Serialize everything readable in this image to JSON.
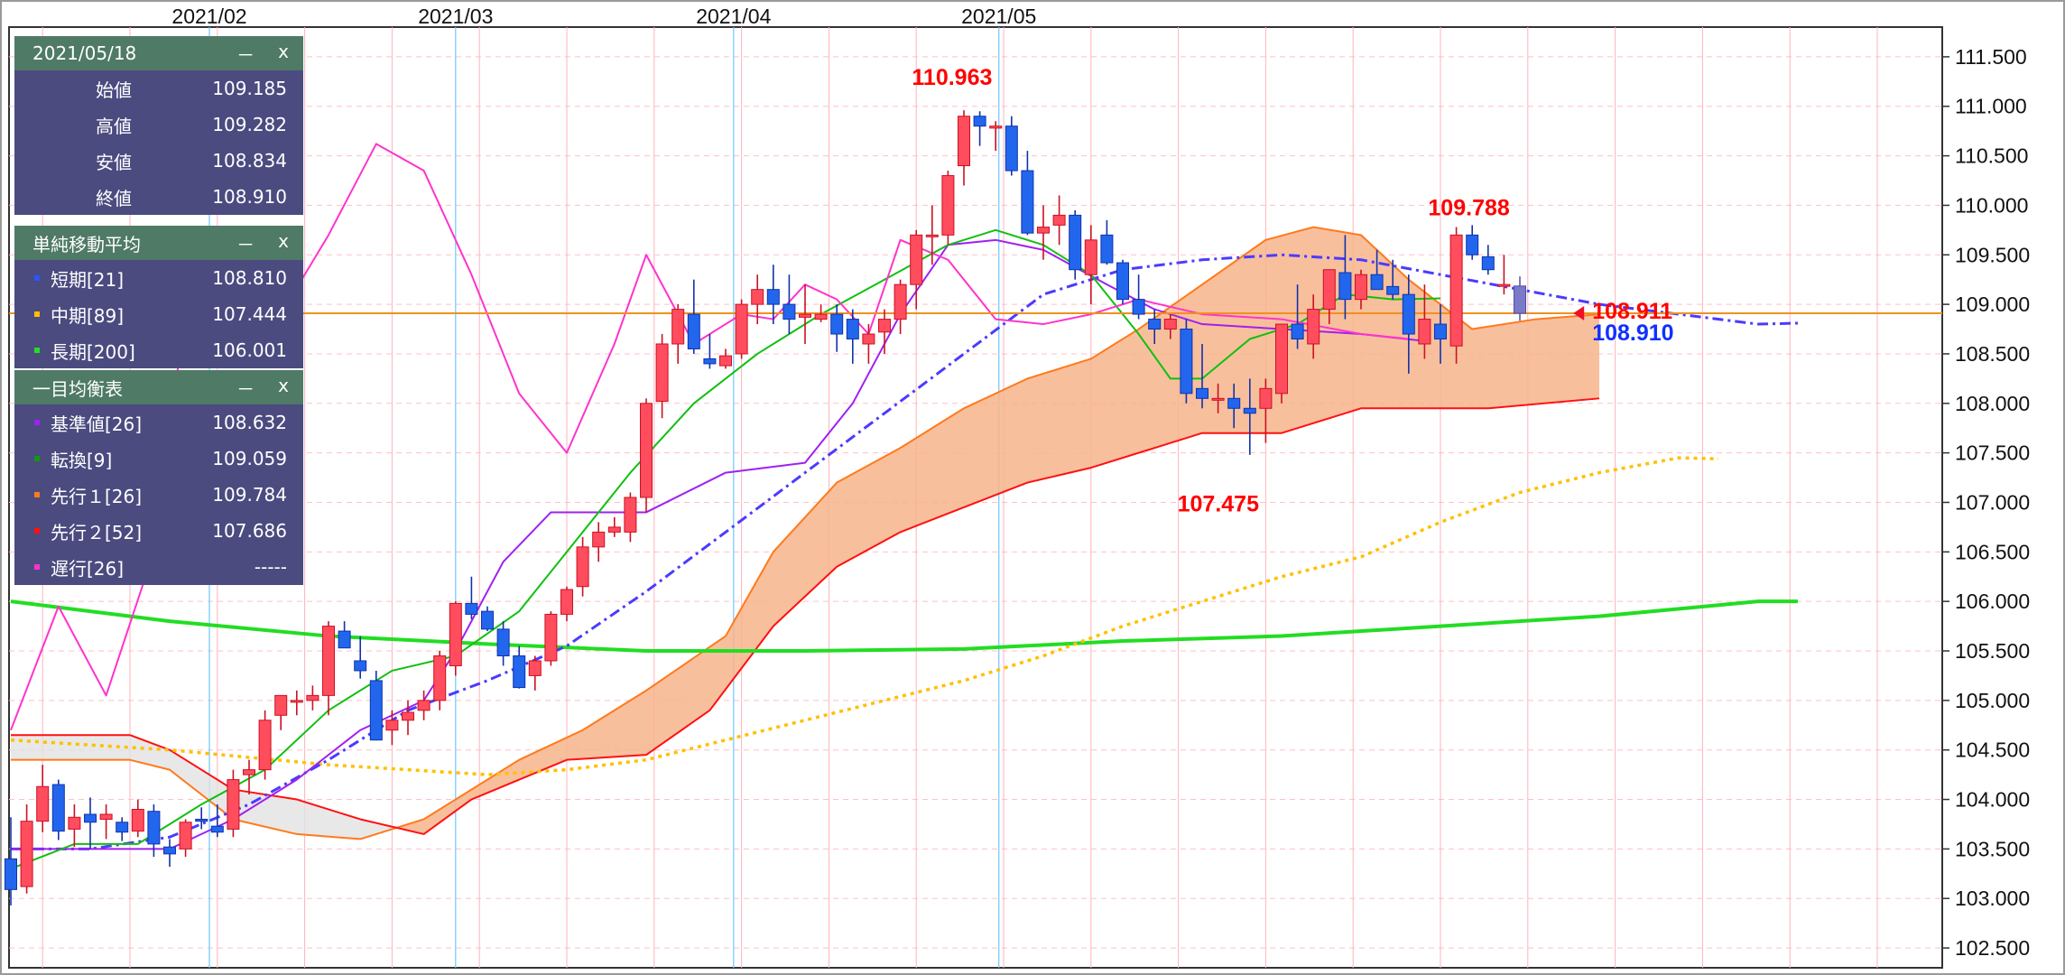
{
  "ohlc_panel": {
    "date": "2021/05/18",
    "minimize": "－",
    "close": "x",
    "rows": [
      {
        "label": "始値",
        "value": "109.185"
      },
      {
        "label": "高値",
        "value": "109.282"
      },
      {
        "label": "安値",
        "value": "108.834"
      },
      {
        "label": "終値",
        "value": "108.910"
      }
    ]
  },
  "sma_panel": {
    "title": "単純移動平均",
    "minimize": "－",
    "close": "x",
    "rows": [
      {
        "label": "短期[21]",
        "value": "108.810",
        "color": "#2b55ff"
      },
      {
        "label": "中期[89]",
        "value": "107.444",
        "color": "#ffc000"
      },
      {
        "label": "長期[200]",
        "value": "106.001",
        "color": "#22dd22"
      }
    ]
  },
  "ichimoku_panel": {
    "title": "一目均衡表",
    "minimize": "－",
    "close": "x",
    "rows": [
      {
        "label": "基準値[26]",
        "value": "108.632",
        "color": "#a020f0"
      },
      {
        "label": "転換[9]",
        "value": "109.059",
        "color": "#109910"
      },
      {
        "label": "先行１[26]",
        "value": "109.784",
        "color": "#ff7a1a"
      },
      {
        "label": "先行２[52]",
        "value": "107.686",
        "color": "#ff1010"
      },
      {
        "label": "遅行[26]",
        "value": "-----",
        "color": "#ff33cc"
      }
    ]
  },
  "chart_data": {
    "type": "candlestick",
    "x_labels": [
      "2021/02",
      "2021/03",
      "2021/04",
      "2021/05"
    ],
    "y_ticks": [
      "111.500",
      "111.000",
      "110.500",
      "110.000",
      "109.500",
      "109.000",
      "108.500",
      "108.000",
      "107.500",
      "107.000",
      "106.500",
      "106.000",
      "105.500",
      "105.000",
      "104.500",
      "104.000",
      "103.500",
      "103.000",
      "102.500"
    ],
    "ylim": [
      102.3,
      111.8
    ],
    "annotations": [
      {
        "text": "110.963",
        "value": 110.963,
        "color": "#ff0000"
      },
      {
        "text": "109.788",
        "value": 109.788,
        "color": "#ff0000"
      },
      {
        "text": "107.475",
        "value": 107.475,
        "color": "#ff0000"
      },
      {
        "text": "108.911",
        "value": 108.911,
        "color": "#ff0000"
      },
      {
        "text": "108.910",
        "value": 108.91,
        "color": "#1030ff"
      }
    ],
    "current_price": 108.91,
    "colors": {
      "up": "#ff4d5e",
      "down": "#2266ee",
      "cloud_bull": "#f7b48c",
      "cloud_bear": "#e2e2e2",
      "grid": "#ffc0c8",
      "month_line": "#6ec6ff"
    },
    "candles": [
      [
        103.4,
        103.82,
        102.93,
        103.09
      ],
      [
        103.12,
        103.95,
        103.05,
        103.78
      ],
      [
        103.78,
        104.35,
        103.67,
        104.13
      ],
      [
        104.15,
        104.2,
        103.59,
        103.68
      ],
      [
        103.7,
        103.95,
        103.52,
        103.82
      ],
      [
        103.85,
        104.02,
        103.5,
        103.77
      ],
      [
        103.8,
        103.95,
        103.6,
        103.85
      ],
      [
        103.77,
        103.82,
        103.58,
        103.67
      ],
      [
        103.68,
        104.0,
        103.62,
        103.9
      ],
      [
        103.88,
        103.95,
        103.42,
        103.55
      ],
      [
        103.52,
        103.6,
        103.32,
        103.45
      ],
      [
        103.5,
        103.8,
        103.42,
        103.77
      ],
      [
        103.8,
        103.92,
        103.7,
        103.78
      ],
      [
        103.73,
        103.95,
        103.62,
        103.67
      ],
      [
        103.7,
        104.3,
        103.62,
        104.2
      ],
      [
        104.25,
        104.4,
        104.05,
        104.3
      ],
      [
        104.3,
        104.9,
        104.2,
        104.8
      ],
      [
        104.85,
        105.0,
        104.7,
        105.05
      ],
      [
        105.0,
        105.1,
        104.85,
        105.0
      ],
      [
        105.0,
        105.15,
        104.9,
        105.05
      ],
      [
        105.05,
        105.8,
        104.85,
        105.75
      ],
      [
        105.7,
        105.8,
        105.55,
        105.53
      ],
      [
        105.4,
        105.65,
        105.22,
        105.3
      ],
      [
        105.2,
        105.3,
        104.62,
        104.6
      ],
      [
        104.7,
        104.9,
        104.55,
        104.8
      ],
      [
        104.8,
        105.0,
        104.65,
        104.88
      ],
      [
        104.9,
        105.1,
        104.8,
        105.0
      ],
      [
        105.0,
        105.5,
        104.9,
        105.45
      ],
      [
        105.35,
        106.0,
        105.25,
        105.98
      ],
      [
        105.98,
        106.25,
        105.82,
        105.87
      ],
      [
        105.9,
        105.95,
        105.7,
        105.72
      ],
      [
        105.72,
        105.8,
        105.35,
        105.45
      ],
      [
        105.45,
        105.55,
        105.12,
        105.13
      ],
      [
        105.25,
        105.45,
        105.1,
        105.4
      ],
      [
        105.4,
        105.9,
        105.35,
        105.87
      ],
      [
        105.87,
        106.15,
        105.8,
        106.12
      ],
      [
        106.15,
        106.65,
        106.05,
        106.55
      ],
      [
        106.55,
        106.8,
        106.4,
        106.7
      ],
      [
        106.7,
        106.85,
        106.65,
        106.75
      ],
      [
        106.7,
        107.1,
        106.6,
        107.05
      ],
      [
        107.05,
        108.05,
        106.9,
        108.0
      ],
      [
        108.02,
        108.7,
        107.85,
        108.6
      ],
      [
        108.6,
        109.0,
        108.4,
        108.95
      ],
      [
        108.9,
        109.25,
        108.5,
        108.55
      ],
      [
        108.45,
        108.7,
        108.35,
        108.4
      ],
      [
        108.38,
        108.55,
        108.35,
        108.48
      ],
      [
        108.5,
        109.05,
        108.45,
        109.0
      ],
      [
        109.0,
        109.3,
        108.8,
        109.15
      ],
      [
        109.15,
        109.4,
        108.8,
        109.0
      ],
      [
        109.0,
        109.3,
        108.7,
        108.85
      ],
      [
        108.87,
        109.2,
        108.6,
        108.9
      ],
      [
        108.85,
        109.0,
        108.82,
        108.9
      ],
      [
        108.9,
        109.0,
        108.52,
        108.7
      ],
      [
        108.85,
        108.95,
        108.4,
        108.65
      ],
      [
        108.6,
        108.8,
        108.4,
        108.7
      ],
      [
        108.72,
        108.95,
        108.5,
        108.85
      ],
      [
        108.85,
        109.25,
        108.7,
        109.2
      ],
      [
        109.2,
        109.75,
        108.95,
        109.7
      ],
      [
        109.7,
        110.0,
        109.4,
        109.7
      ],
      [
        109.7,
        110.35,
        109.6,
        110.3
      ],
      [
        110.4,
        110.96,
        110.2,
        110.9
      ],
      [
        110.9,
        110.95,
        110.6,
        110.8
      ],
      [
        110.78,
        110.85,
        110.55,
        110.8
      ],
      [
        110.8,
        110.9,
        110.3,
        110.35
      ],
      [
        110.35,
        110.55,
        109.7,
        109.72
      ],
      [
        109.72,
        110.0,
        109.45,
        109.78
      ],
      [
        109.8,
        110.1,
        109.6,
        109.9
      ],
      [
        109.9,
        109.95,
        109.25,
        109.35
      ],
      [
        109.3,
        109.8,
        109.0,
        109.65
      ],
      [
        109.7,
        109.85,
        109.4,
        109.42
      ],
      [
        109.42,
        109.45,
        109.0,
        109.05
      ],
      [
        109.05,
        109.3,
        108.85,
        108.9
      ],
      [
        108.85,
        108.95,
        108.6,
        108.75
      ],
      [
        108.75,
        108.9,
        108.65,
        108.85
      ],
      [
        108.75,
        108.85,
        108.0,
        108.1
      ],
      [
        108.15,
        108.6,
        107.95,
        108.05
      ],
      [
        108.05,
        108.2,
        107.9,
        108.05
      ],
      [
        108.05,
        108.2,
        107.75,
        107.95
      ],
      [
        107.95,
        108.25,
        107.48,
        107.9
      ],
      [
        107.95,
        108.25,
        107.6,
        108.15
      ],
      [
        108.1,
        108.8,
        108.0,
        108.8
      ],
      [
        108.8,
        109.2,
        108.55,
        108.65
      ],
      [
        108.6,
        109.1,
        108.45,
        108.95
      ],
      [
        108.95,
        109.35,
        108.8,
        109.35
      ],
      [
        109.32,
        109.7,
        108.85,
        109.05
      ],
      [
        109.05,
        109.35,
        108.95,
        109.3
      ],
      [
        109.3,
        109.55,
        109.2,
        109.15
      ],
      [
        109.18,
        109.45,
        109.05,
        109.1
      ],
      [
        109.1,
        109.3,
        108.3,
        108.7
      ],
      [
        108.6,
        109.2,
        108.45,
        108.85
      ],
      [
        108.8,
        109.0,
        108.4,
        108.65
      ],
      [
        108.58,
        109.78,
        108.4,
        109.7
      ],
      [
        109.7,
        109.8,
        109.45,
        109.5
      ],
      [
        109.48,
        109.6,
        109.3,
        109.35
      ],
      [
        109.2,
        109.5,
        109.1,
        109.2
      ],
      [
        109.185,
        109.282,
        108.834,
        108.91
      ]
    ],
    "ma_short": [
      [
        0,
        103.5
      ],
      [
        10,
        103.5
      ],
      [
        20,
        103.62
      ],
      [
        30,
        103.95
      ],
      [
        40,
        104.4
      ],
      [
        50,
        104.9
      ],
      [
        60,
        105.2
      ],
      [
        70,
        105.55
      ],
      [
        80,
        106.1
      ],
      [
        90,
        106.7
      ],
      [
        100,
        107.3
      ],
      [
        110,
        107.9
      ],
      [
        120,
        108.5
      ],
      [
        130,
        109.1
      ],
      [
        140,
        109.35
      ],
      [
        150,
        109.45
      ],
      [
        160,
        109.5
      ],
      [
        170,
        109.45
      ],
      [
        180,
        109.3
      ],
      [
        190,
        109.15
      ],
      [
        200,
        109.0
      ],
      [
        210,
        108.9
      ],
      [
        220,
        108.8
      ],
      [
        225,
        108.81
      ]
    ],
    "ma_mid": [
      [
        0,
        104.6
      ],
      [
        20,
        104.5
      ],
      [
        40,
        104.35
      ],
      [
        50,
        104.3
      ],
      [
        60,
        104.25
      ],
      [
        70,
        104.3
      ],
      [
        80,
        104.4
      ],
      [
        90,
        104.6
      ],
      [
        100,
        104.8
      ],
      [
        110,
        105.0
      ],
      [
        120,
        105.2
      ],
      [
        130,
        105.45
      ],
      [
        140,
        105.75
      ],
      [
        150,
        106.0
      ],
      [
        160,
        106.25
      ],
      [
        170,
        106.45
      ],
      [
        180,
        106.8
      ],
      [
        190,
        107.1
      ],
      [
        200,
        107.3
      ],
      [
        210,
        107.45
      ],
      [
        215,
        107.44
      ]
    ],
    "ma_long": [
      [
        0,
        106.0
      ],
      [
        20,
        105.8
      ],
      [
        40,
        105.65
      ],
      [
        60,
        105.57
      ],
      [
        80,
        105.5
      ],
      [
        100,
        105.5
      ],
      [
        120,
        105.52
      ],
      [
        140,
        105.6
      ],
      [
        160,
        105.65
      ],
      [
        180,
        105.75
      ],
      [
        200,
        105.85
      ],
      [
        220,
        106.0
      ],
      [
        225,
        106.0
      ]
    ],
    "tenkan": [
      [
        0,
        103.3
      ],
      [
        8,
        103.55
      ],
      [
        16,
        103.55
      ],
      [
        24,
        103.95
      ],
      [
        32,
        104.3
      ],
      [
        40,
        104.9
      ],
      [
        48,
        105.3
      ],
      [
        56,
        105.45
      ],
      [
        64,
        105.9
      ],
      [
        70,
        106.5
      ],
      [
        78,
        107.3
      ],
      [
        86,
        108.0
      ],
      [
        94,
        108.5
      ],
      [
        102,
        108.9
      ],
      [
        110,
        109.25
      ],
      [
        118,
        109.6
      ],
      [
        124,
        109.75
      ],
      [
        130,
        109.6
      ],
      [
        136,
        109.3
      ],
      [
        142,
        108.7
      ],
      [
        146,
        108.25
      ],
      [
        150,
        108.25
      ],
      [
        156,
        108.65
      ],
      [
        162,
        108.8
      ],
      [
        168,
        109.1
      ],
      [
        174,
        109.05
      ],
      [
        180,
        109.06
      ]
    ],
    "kijun": [
      [
        0,
        103.5
      ],
      [
        10,
        103.5
      ],
      [
        20,
        103.5
      ],
      [
        28,
        103.8
      ],
      [
        36,
        104.2
      ],
      [
        44,
        104.7
      ],
      [
        52,
        105.0
      ],
      [
        56,
        105.5
      ],
      [
        62,
        106.4
      ],
      [
        68,
        106.9
      ],
      [
        80,
        106.9
      ],
      [
        90,
        107.3
      ],
      [
        100,
        107.4
      ],
      [
        106,
        108.0
      ],
      [
        112,
        108.9
      ],
      [
        118,
        109.6
      ],
      [
        124,
        109.65
      ],
      [
        130,
        109.55
      ],
      [
        138,
        109.2
      ],
      [
        144,
        108.95
      ],
      [
        150,
        108.8
      ],
      [
        160,
        108.75
      ],
      [
        170,
        108.7
      ],
      [
        178,
        108.63
      ]
    ],
    "chikou": [
      [
        0,
        104.7
      ],
      [
        6,
        105.95
      ],
      [
        12,
        105.05
      ],
      [
        18,
        106.5
      ],
      [
        22,
        108.95
      ],
      [
        28,
        109.1
      ],
      [
        34,
        108.9
      ],
      [
        40,
        109.7
      ],
      [
        46,
        110.62
      ],
      [
        52,
        110.35
      ],
      [
        58,
        109.3
      ],
      [
        64,
        108.1
      ],
      [
        70,
        107.5
      ],
      [
        76,
        108.6
      ],
      [
        80,
        109.5
      ],
      [
        86,
        108.6
      ],
      [
        92,
        108.9
      ],
      [
        96,
        108.85
      ],
      [
        100,
        109.2
      ],
      [
        104,
        109.05
      ],
      [
        108,
        108.7
      ],
      [
        112,
        109.65
      ],
      [
        118,
        109.45
      ],
      [
        124,
        108.85
      ],
      [
        130,
        108.8
      ],
      [
        136,
        108.9
      ],
      [
        142,
        109.05
      ],
      [
        150,
        108.9
      ],
      [
        160,
        108.85
      ],
      [
        170,
        108.7
      ],
      [
        176,
        108.65
      ]
    ],
    "senkou1": [
      [
        0,
        104.4
      ],
      [
        15,
        104.4
      ],
      [
        20,
        104.3
      ],
      [
        28,
        103.8
      ],
      [
        36,
        103.65
      ],
      [
        44,
        103.6
      ],
      [
        52,
        103.8
      ],
      [
        56,
        104.0
      ],
      [
        64,
        104.4
      ],
      [
        72,
        104.7
      ],
      [
        80,
        105.1
      ],
      [
        90,
        105.65
      ],
      [
        96,
        106.5
      ],
      [
        104,
        107.2
      ],
      [
        112,
        107.55
      ],
      [
        120,
        107.95
      ],
      [
        128,
        108.25
      ],
      [
        136,
        108.45
      ],
      [
        142,
        108.75
      ],
      [
        150,
        109.2
      ],
      [
        158,
        109.65
      ],
      [
        164,
        109.78
      ],
      [
        170,
        109.7
      ],
      [
        176,
        109.25
      ],
      [
        184,
        108.75
      ],
      [
        192,
        108.85
      ],
      [
        200,
        108.9
      ]
    ],
    "senkou2": [
      [
        0,
        104.65
      ],
      [
        15,
        104.65
      ],
      [
        20,
        104.5
      ],
      [
        28,
        104.1
      ],
      [
        36,
        104.0
      ],
      [
        44,
        103.8
      ],
      [
        52,
        103.65
      ],
      [
        58,
        104.0
      ],
      [
        70,
        104.4
      ],
      [
        80,
        104.45
      ],
      [
        88,
        104.9
      ],
      [
        96,
        105.75
      ],
      [
        104,
        106.35
      ],
      [
        112,
        106.7
      ],
      [
        120,
        106.95
      ],
      [
        128,
        107.2
      ],
      [
        136,
        107.35
      ],
      [
        144,
        107.55
      ],
      [
        150,
        107.7
      ],
      [
        160,
        107.7
      ],
      [
        170,
        107.95
      ],
      [
        180,
        107.95
      ],
      [
        186,
        107.95
      ],
      [
        200,
        108.05
      ]
    ]
  }
}
